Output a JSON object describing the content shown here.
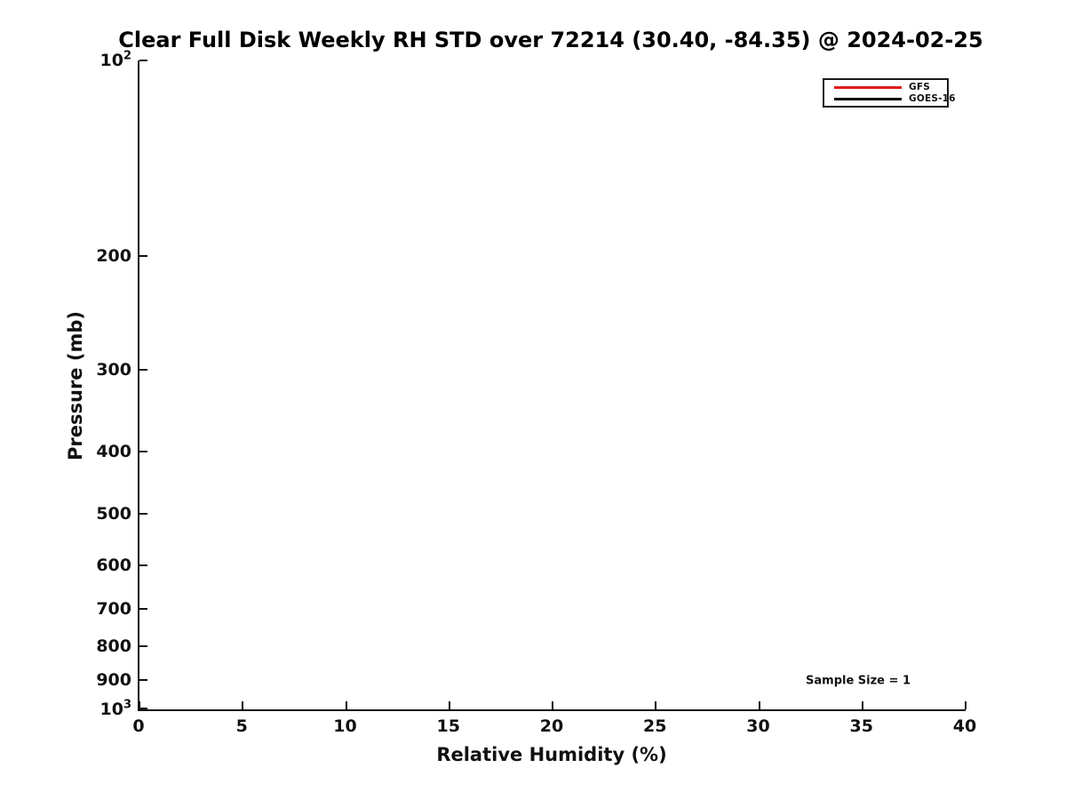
{
  "chart_data": {
    "type": "line",
    "title": "Clear Full Disk Weekly RH STD over 72214 (30.40, -84.35) @ 2024-02-25",
    "xlabel": "Relative Humidity (%)",
    "ylabel": "Pressure (mb)",
    "xlim": [
      0,
      40
    ],
    "xticks": [
      0,
      5,
      10,
      15,
      20,
      25,
      30,
      35,
      40
    ],
    "yscale": "log",
    "y_inverted": true,
    "ylim": [
      100,
      1000
    ],
    "yticks": [
      {
        "value": 100,
        "label": "10^2"
      },
      {
        "value": 200,
        "label": "200"
      },
      {
        "value": 300,
        "label": "300"
      },
      {
        "value": 400,
        "label": "400"
      },
      {
        "value": 500,
        "label": "500"
      },
      {
        "value": 600,
        "label": "600"
      },
      {
        "value": 700,
        "label": "700"
      },
      {
        "value": 800,
        "label": "800"
      },
      {
        "value": 900,
        "label": "900"
      },
      {
        "value": 1000,
        "label": "10^3"
      }
    ],
    "grid": false,
    "legend": {
      "position": "top-right",
      "entries": [
        {
          "label": "GFS",
          "color": "#dc1c1c"
        },
        {
          "label": "GOES-16",
          "color": "#000000"
        }
      ]
    },
    "series": [
      {
        "name": "GFS",
        "color": "#dc1c1c",
        "x": [],
        "y": []
      },
      {
        "name": "GOES-16",
        "color": "#000000",
        "x": [],
        "y": []
      }
    ],
    "annotations": [
      {
        "text": "Sample Size = 1"
      }
    ]
  },
  "colors": {
    "axis": "#111111",
    "background": "#ffffff"
  }
}
